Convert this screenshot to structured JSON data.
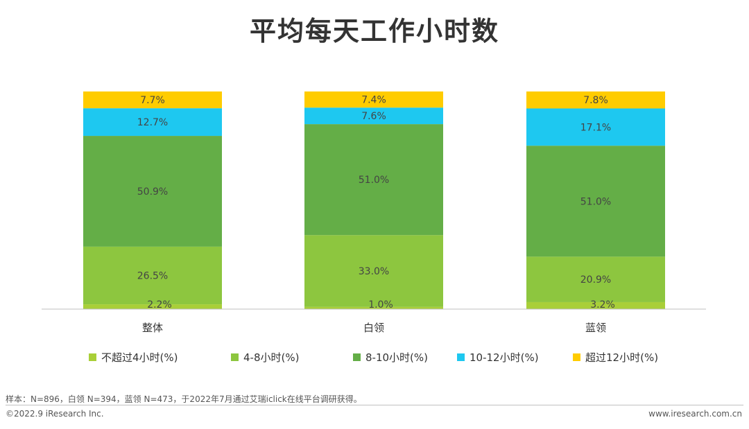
{
  "title": "平均每天工作小时数",
  "chart_data": {
    "type": "bar",
    "stacked": true,
    "normalized_percent": true,
    "categories": [
      "整体",
      "白领",
      "蓝领"
    ],
    "series": [
      {
        "name": "不超过4小时(%)",
        "color": "#a9cf38",
        "values": [
          2.2,
          1.0,
          3.2
        ],
        "labels": [
          "2.2%",
          "1.0%",
          "3.2%"
        ]
      },
      {
        "name": "4-8小时(%)",
        "color": "#8dc63f",
        "values": [
          26.5,
          33.0,
          20.9
        ],
        "labels": [
          "26.5%",
          "33.0%",
          "20.9%"
        ]
      },
      {
        "name": "8-10小时(%)",
        "color": "#64ae47",
        "values": [
          50.9,
          51.0,
          51.0
        ],
        "labels": [
          "50.9%",
          "51.0%",
          "51.0%"
        ]
      },
      {
        "name": "10-12小时(%)",
        "color": "#1ec8f0",
        "values": [
          12.7,
          7.6,
          17.1
        ],
        "labels": [
          "12.7%",
          "7.6%",
          "17.1%"
        ]
      },
      {
        "name": "超过12小时(%)",
        "color": "#ffcc00",
        "values": [
          7.7,
          7.4,
          7.8
        ],
        "labels": [
          "7.7%",
          "7.4%",
          "7.8%"
        ]
      }
    ],
    "legend_position": "bottom",
    "grid": false
  },
  "footnote": "样本：N=896，白领 N=394，蓝领 N=473，于2022年7月通过艾瑞iclick在线平台调研获得。",
  "copyright": "©2022.9 iResearch Inc.",
  "website": "www.iresearch.com.cn"
}
